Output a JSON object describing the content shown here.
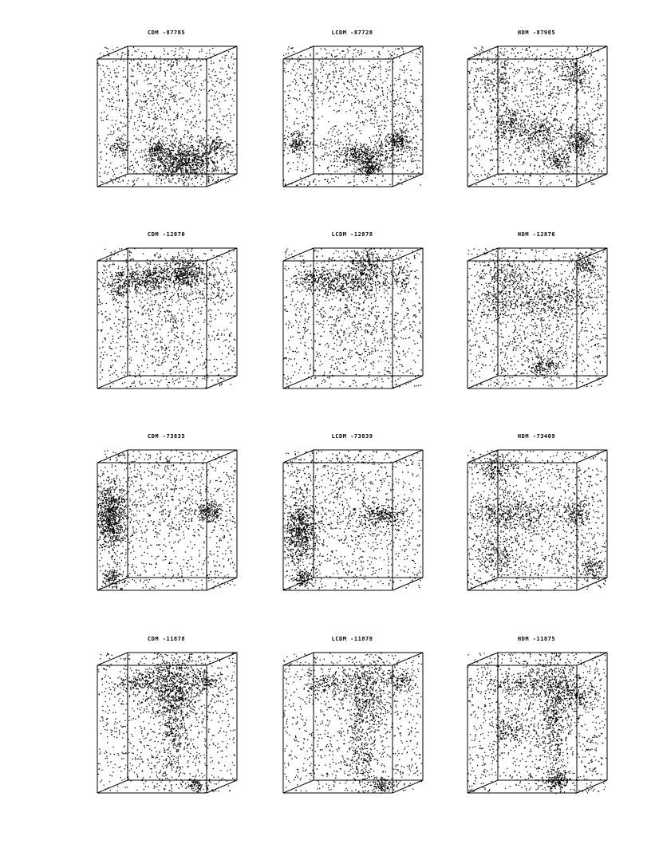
{
  "figure": {
    "columns": [
      "CDM",
      "LCDM",
      "HDM"
    ],
    "rows": [
      {
        "panels": [
          {
            "title": "CDM -87785",
            "model": "CDM"
          },
          {
            "title": "LCDM -87728",
            "model": "LCDM"
          },
          {
            "title": "HDM -87985",
            "model": "HDM"
          }
        ]
      },
      {
        "panels": [
          {
            "title": "CDM -12870",
            "model": "CDM"
          },
          {
            "title": "LCDM -12878",
            "model": "LCDM"
          },
          {
            "title": "HDM -12876",
            "model": "HDM"
          }
        ]
      },
      {
        "panels": [
          {
            "title": "CDM -73835",
            "model": "CDM"
          },
          {
            "title": "LCDM -73839",
            "model": "LCDM"
          },
          {
            "title": "HDM -73409",
            "model": "HDM"
          }
        ]
      },
      {
        "panels": [
          {
            "title": "CDM -11878",
            "model": "CDM"
          },
          {
            "title": "LCDM -11878",
            "model": "LCDM"
          },
          {
            "title": "HDM -11875",
            "model": "HDM"
          }
        ]
      }
    ],
    "colors": {
      "ink": "#000000",
      "background": "#ffffff"
    }
  }
}
